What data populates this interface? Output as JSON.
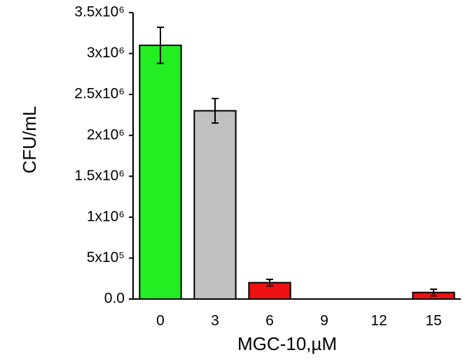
{
  "chart_data": {
    "type": "bar",
    "x_label": "MGC-10,µM",
    "y_label": "CFU/mL",
    "categories": [
      "0",
      "3",
      "6",
      "9",
      "12",
      "15"
    ],
    "values": [
      3100000,
      2300000,
      200000,
      null,
      0,
      80000
    ],
    "errors": [
      220000,
      150000,
      40000,
      null,
      0,
      40000
    ],
    "colors": [
      "#22ee22",
      "#c0c0c0",
      "#ee1111",
      "#ee1111",
      "#ee1111",
      "#ee1111"
    ],
    "ylim": [
      0,
      3500000
    ],
    "yticks": [
      {
        "value": 0,
        "label": "0.0"
      },
      {
        "value": 500000,
        "label": "5x10⁵"
      },
      {
        "value": 1000000,
        "label": "1x10⁶"
      },
      {
        "value": 1500000,
        "label": "1.5x10⁶"
      },
      {
        "value": 2000000,
        "label": "2x10⁶"
      },
      {
        "value": 2500000,
        "label": "2.5x10⁶"
      },
      {
        "value": 3000000,
        "label": "3x10⁶"
      },
      {
        "value": 3500000,
        "label": "3.5x10⁶"
      }
    ],
    "grid": false
  }
}
